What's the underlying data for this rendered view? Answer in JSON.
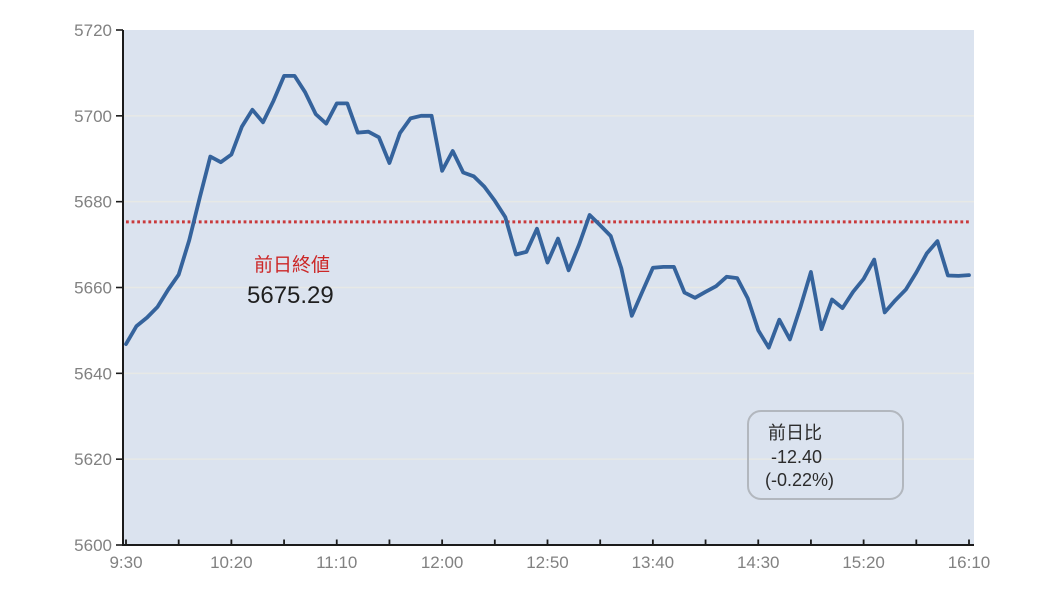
{
  "chart_data": {
    "type": "line",
    "title": "",
    "xlabel": "",
    "ylabel": "",
    "x_start": "9:30",
    "x_end": "16:10",
    "point_interval_minutes": 5,
    "x_tick_labels": [
      "9:30",
      "10:20",
      "11:10",
      "12:00",
      "12:50",
      "13:40",
      "14:30",
      "15:20",
      "16:10"
    ],
    "y_ticks": [
      5600,
      5620,
      5640,
      5660,
      5680,
      5700,
      5720
    ],
    "ylim": [
      5600,
      5720
    ],
    "grid": "horizontal",
    "legend": "none",
    "prev_close": 5675.29,
    "series": [
      {
        "name": "price",
        "values": [
          5646.8,
          5651.0,
          5653.0,
          5655.5,
          5659.5,
          5663.0,
          5671.0,
          5681.0,
          5690.5,
          5689.2,
          5691.0,
          5697.5,
          5701.4,
          5698.5,
          5703.5,
          5709.3,
          5709.3,
          5705.5,
          5700.4,
          5698.2,
          5702.9,
          5702.9,
          5696.1,
          5696.3,
          5695.0,
          5689.0,
          5696.0,
          5699.4,
          5700.0,
          5700.0,
          5687.2,
          5691.8,
          5686.8,
          5685.9,
          5683.5,
          5680.2,
          5676.4,
          5667.7,
          5668.3,
          5673.7,
          5665.8,
          5671.4,
          5664.0,
          5670.0,
          5676.9,
          5674.5,
          5672.0,
          5664.5,
          5653.4,
          5659.0,
          5664.6,
          5664.8,
          5664.8,
          5658.8,
          5657.6,
          5659.0,
          5660.3,
          5662.5,
          5662.2,
          5657.5,
          5650.0,
          5646.0,
          5652.5,
          5647.9,
          5655.4,
          5663.6,
          5650.3,
          5657.2,
          5655.2,
          5659.0,
          5662.0,
          5666.5,
          5654.2,
          5657.0,
          5659.5,
          5663.5,
          5668.0,
          5670.8,
          5662.8,
          5662.7,
          5662.9
        ]
      }
    ],
    "colors": {
      "line": "#35639c",
      "plot_background": "#dbe3ef",
      "ref_line": "#c93a3c",
      "gridline": "#e7e9e6",
      "axis": "#1b1b1b",
      "tick_label": "#818181"
    }
  },
  "annotations": {
    "prev_close_label": "前日終値",
    "prev_close_value": "5675.29",
    "change_box": {
      "title": "前日比",
      "change": "-12.40",
      "change_pct": "(-0.22%)"
    }
  }
}
